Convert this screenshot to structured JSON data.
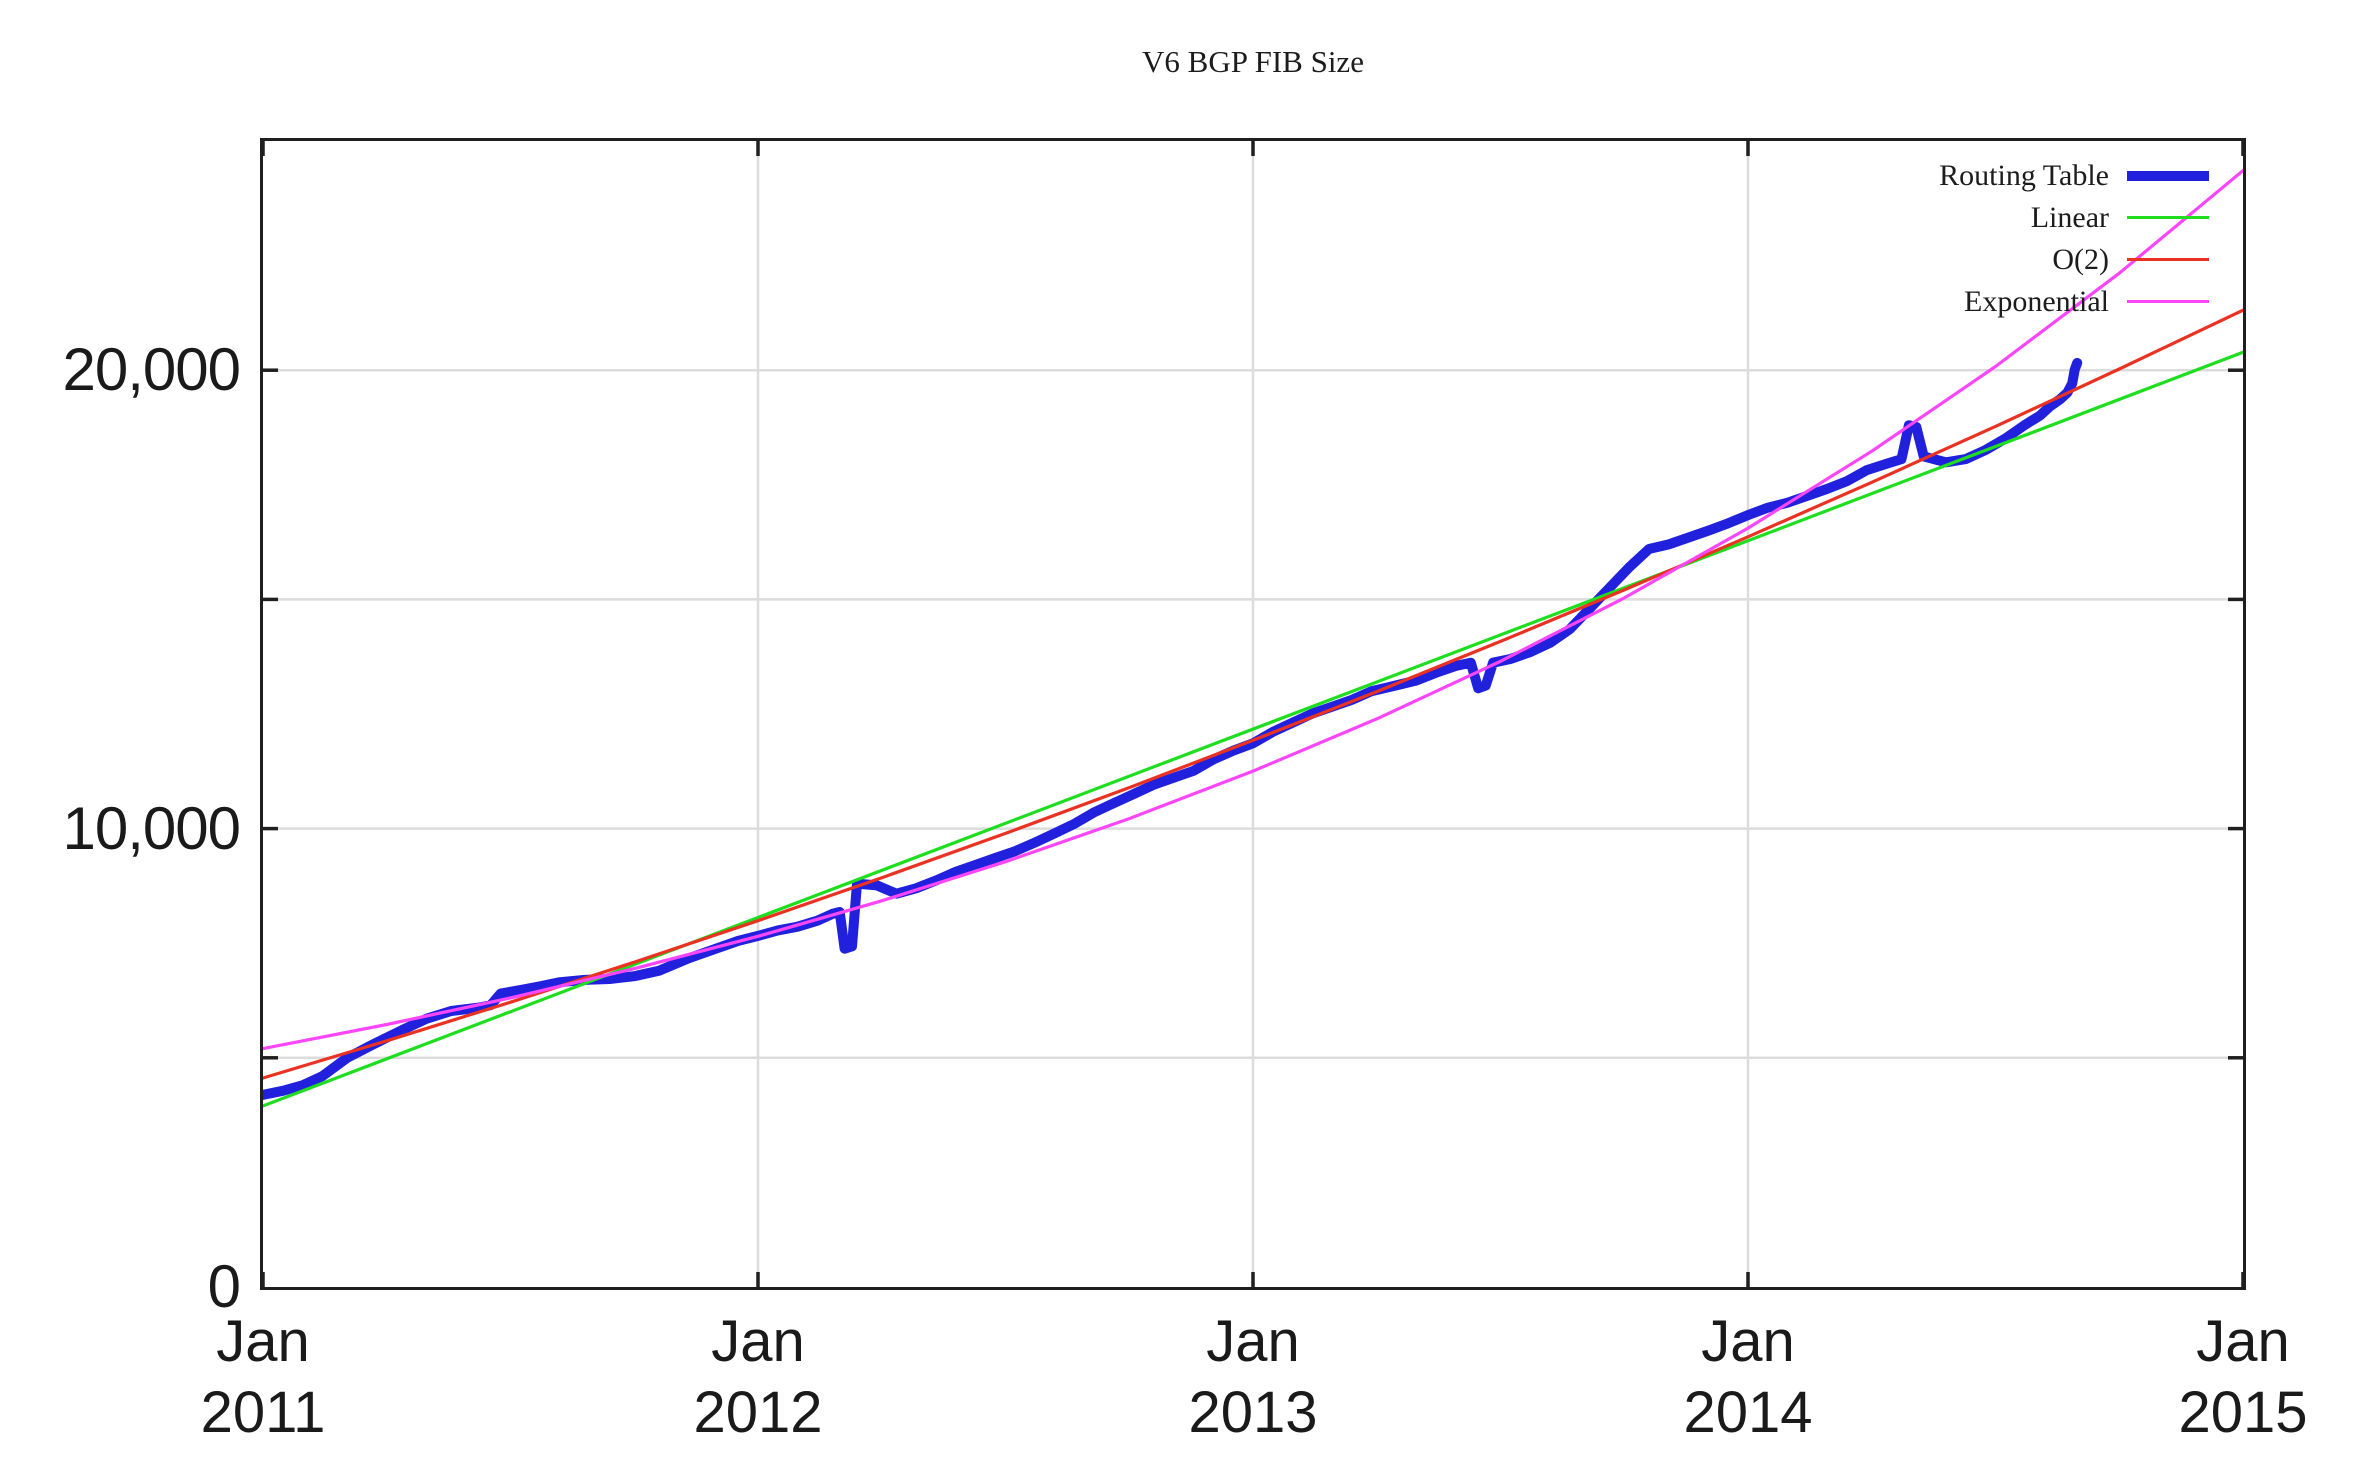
{
  "title": "V6 BGP FIB Size",
  "colors": {
    "routing_table": "#2121dd",
    "linear": "#1fdd1f",
    "o2": "#ea3223",
    "exponential": "#fa46fa",
    "grid": "#dcdcdc",
    "axis": "#1f1f1f"
  },
  "legend": {
    "items": [
      {
        "label": "Routing Table",
        "color_key": "routing_table",
        "sample_thickness": 10
      },
      {
        "label": "Linear",
        "color_key": "linear",
        "sample_thickness": 3
      },
      {
        "label": "O(2)",
        "color_key": "o2",
        "sample_thickness": 3
      },
      {
        "label": "Exponential",
        "color_key": "exponential",
        "sample_thickness": 3
      }
    ]
  },
  "y_axis": {
    "min": 0,
    "max": 25000,
    "labeled_ticks": [
      {
        "value": 20000,
        "label": "20,000"
      },
      {
        "value": 10000,
        "label": "10,000"
      },
      {
        "value": 0,
        "label": "0"
      }
    ],
    "grid_values": [
      5000,
      10000,
      15000,
      20000
    ]
  },
  "x_axis": {
    "min_year": 2011,
    "max_year": 2015,
    "ticks": [
      {
        "month": "Jan",
        "year": "2011"
      },
      {
        "month": "Jan",
        "year": "2012"
      },
      {
        "month": "Jan",
        "year": "2013"
      },
      {
        "month": "Jan",
        "year": "2014"
      },
      {
        "month": "Jan",
        "year": "2015"
      }
    ],
    "grid_year_offsets": [
      1,
      2,
      3
    ]
  },
  "chart_data": {
    "type": "line",
    "title": "V6 BGP FIB Size",
    "xlabel": "",
    "ylabel": "",
    "x_unit": "years since Jan 2011",
    "xlim": [
      0,
      4
    ],
    "ylim": [
      0,
      25000
    ],
    "grid": true,
    "legend_position": "top-right",
    "series": [
      {
        "name": "Routing Table",
        "color_key": "routing_table",
        "stroke_width": 10,
        "points": [
          [
            0.0,
            4190
          ],
          [
            0.04,
            4280
          ],
          [
            0.08,
            4400
          ],
          [
            0.12,
            4600
          ],
          [
            0.17,
            5000
          ],
          [
            0.22,
            5280
          ],
          [
            0.28,
            5600
          ],
          [
            0.33,
            5850
          ],
          [
            0.38,
            6020
          ],
          [
            0.44,
            6100
          ],
          [
            0.46,
            6150
          ],
          [
            0.48,
            6400
          ],
          [
            0.52,
            6480
          ],
          [
            0.56,
            6560
          ],
          [
            0.6,
            6650
          ],
          [
            0.65,
            6700
          ],
          [
            0.7,
            6720
          ],
          [
            0.75,
            6780
          ],
          [
            0.8,
            6900
          ],
          [
            0.86,
            7170
          ],
          [
            0.92,
            7400
          ],
          [
            0.96,
            7550
          ],
          [
            1.0,
            7660
          ],
          [
            1.04,
            7780
          ],
          [
            1.08,
            7860
          ],
          [
            1.12,
            7990
          ],
          [
            1.15,
            8140
          ],
          [
            1.165,
            8180
          ],
          [
            1.175,
            7380
          ],
          [
            1.19,
            7430
          ],
          [
            1.2,
            8800
          ],
          [
            1.24,
            8760
          ],
          [
            1.28,
            8580
          ],
          [
            1.32,
            8700
          ],
          [
            1.36,
            8870
          ],
          [
            1.4,
            9060
          ],
          [
            1.44,
            9210
          ],
          [
            1.48,
            9360
          ],
          [
            1.52,
            9510
          ],
          [
            1.56,
            9700
          ],
          [
            1.6,
            9900
          ],
          [
            1.64,
            10110
          ],
          [
            1.68,
            10360
          ],
          [
            1.72,
            10560
          ],
          [
            1.76,
            10760
          ],
          [
            1.8,
            10960
          ],
          [
            1.84,
            11110
          ],
          [
            1.88,
            11260
          ],
          [
            1.92,
            11510
          ],
          [
            1.96,
            11700
          ],
          [
            2.0,
            11860
          ],
          [
            2.04,
            12110
          ],
          [
            2.08,
            12310
          ],
          [
            2.12,
            12510
          ],
          [
            2.16,
            12660
          ],
          [
            2.2,
            12810
          ],
          [
            2.24,
            13000
          ],
          [
            2.28,
            13100
          ],
          [
            2.33,
            13230
          ],
          [
            2.37,
            13400
          ],
          [
            2.41,
            13550
          ],
          [
            2.44,
            13620
          ],
          [
            2.455,
            13060
          ],
          [
            2.47,
            13120
          ],
          [
            2.485,
            13620
          ],
          [
            2.52,
            13700
          ],
          [
            2.56,
            13850
          ],
          [
            2.6,
            14050
          ],
          [
            2.64,
            14350
          ],
          [
            2.68,
            14800
          ],
          [
            2.72,
            15250
          ],
          [
            2.76,
            15700
          ],
          [
            2.8,
            16100
          ],
          [
            2.84,
            16200
          ],
          [
            2.88,
            16350
          ],
          [
            2.92,
            16500
          ],
          [
            2.96,
            16660
          ],
          [
            3.0,
            16840
          ],
          [
            3.04,
            17000
          ],
          [
            3.08,
            17110
          ],
          [
            3.12,
            17260
          ],
          [
            3.16,
            17410
          ],
          [
            3.2,
            17580
          ],
          [
            3.24,
            17820
          ],
          [
            3.28,
            17960
          ],
          [
            3.31,
            18060
          ],
          [
            3.325,
            18800
          ],
          [
            3.34,
            18760
          ],
          [
            3.355,
            18120
          ],
          [
            3.4,
            17990
          ],
          [
            3.44,
            18060
          ],
          [
            3.48,
            18260
          ],
          [
            3.52,
            18510
          ],
          [
            3.56,
            18810
          ],
          [
            3.59,
            19010
          ],
          [
            3.61,
            19210
          ],
          [
            3.63,
            19360
          ],
          [
            3.645,
            19510
          ],
          [
            3.655,
            19710
          ],
          [
            3.66,
            20010
          ],
          [
            3.665,
            20160
          ]
        ]
      },
      {
        "name": "Linear",
        "color_key": "linear",
        "stroke_width": 3.2,
        "points": [
          [
            0,
            3950
          ],
          [
            4,
            20390
          ]
        ]
      },
      {
        "name": "O(2)",
        "color_key": "o2",
        "stroke_width": 3.2,
        "points": [
          [
            0,
            4560
          ],
          [
            0.25,
            5370
          ],
          [
            0.5,
            6213
          ],
          [
            0.75,
            7086
          ],
          [
            1,
            7991
          ],
          [
            1.25,
            8928
          ],
          [
            1.5,
            9896
          ],
          [
            1.75,
            10895
          ],
          [
            2,
            11926
          ],
          [
            2.25,
            12988
          ],
          [
            2.5,
            14083
          ],
          [
            2.75,
            15208
          ],
          [
            3,
            16365
          ],
          [
            3.25,
            17554
          ],
          [
            3.5,
            18774
          ],
          [
            3.75,
            20026
          ],
          [
            4,
            21309
          ]
        ]
      },
      {
        "name": "Exponential",
        "color_key": "exponential",
        "stroke_width": 3.2,
        "points": [
          [
            0,
            5200
          ],
          [
            0.25,
            5727
          ],
          [
            0.5,
            6307
          ],
          [
            0.75,
            6946
          ],
          [
            1,
            7650
          ],
          [
            1.25,
            8425
          ],
          [
            1.5,
            9279
          ],
          [
            1.75,
            10219
          ],
          [
            2,
            11254
          ],
          [
            2.25,
            12394
          ],
          [
            2.5,
            13650
          ],
          [
            2.75,
            15033
          ],
          [
            3,
            16556
          ],
          [
            3.25,
            18233
          ],
          [
            3.5,
            20080
          ],
          [
            3.75,
            22115
          ],
          [
            4,
            24355
          ]
        ]
      }
    ]
  }
}
